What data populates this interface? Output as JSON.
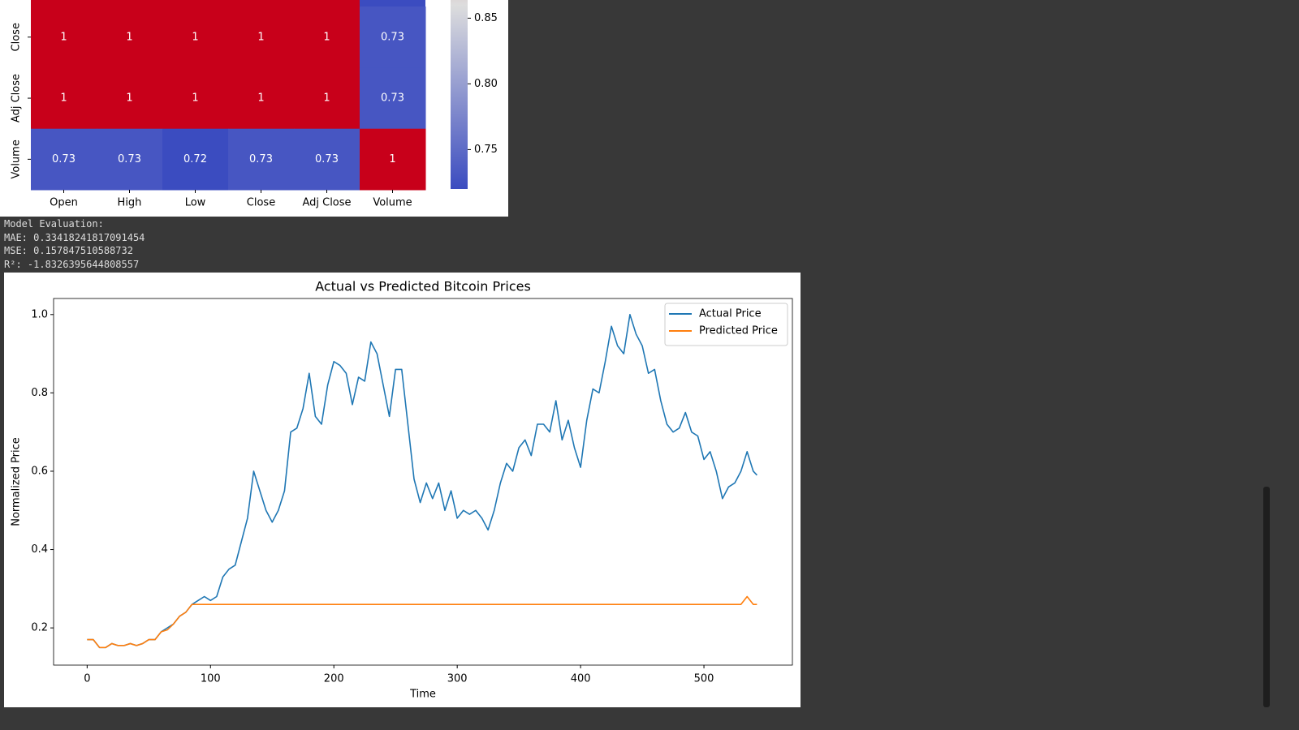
{
  "chart_data": [
    {
      "type": "heatmap",
      "rows": [
        "Close",
        "Adj Close",
        "Volume"
      ],
      "columns": [
        "Open",
        "High",
        "Low",
        "Close",
        "Adj Close",
        "Volume"
      ],
      "values": [
        [
          1,
          1,
          1,
          1,
          1,
          0.73
        ],
        [
          1,
          1,
          1,
          1,
          1,
          0.73
        ],
        [
          0.73,
          0.73,
          0.72,
          0.73,
          0.73,
          1
        ]
      ],
      "colors": [
        "#3b4cc0",
        "#dddddd",
        "#c8001a"
      ],
      "clim": [
        0.72,
        1
      ],
      "cticks": [
        0.75,
        {
          "value": 0.8,
          "label": "0.80"
        },
        0.85
      ]
    },
    {
      "type": "line",
      "title": "Actual vs Predicted Bitcoin Prices",
      "xlabel": "Time",
      "ylabel": "Normalized Price",
      "x": [
        0,
        5,
        10,
        15,
        20,
        25,
        30,
        35,
        40,
        45,
        50,
        55,
        60,
        65,
        70,
        75,
        80,
        85,
        90,
        95,
        100,
        105,
        110,
        115,
        120,
        125,
        130,
        135,
        140,
        145,
        150,
        155,
        160,
        165,
        170,
        175,
        180,
        185,
        190,
        195,
        200,
        205,
        210,
        215,
        220,
        225,
        230,
        235,
        240,
        245,
        250,
        255,
        260,
        265,
        270,
        275,
        280,
        285,
        290,
        295,
        300,
        305,
        310,
        315,
        320,
        325,
        330,
        335,
        340,
        345,
        350,
        355,
        360,
        365,
        370,
        375,
        380,
        385,
        390,
        395,
        400,
        405,
        410,
        415,
        420,
        425,
        430,
        435,
        440,
        445,
        450,
        455,
        460,
        465,
        470,
        475,
        480,
        485,
        490,
        495,
        500,
        505,
        510,
        515,
        520,
        525,
        530,
        535,
        540,
        543
      ],
      "series": [
        {
          "name": "Actual Price",
          "color": "#1f77b4",
          "values": [
            0.17,
            0.17,
            0.15,
            0.15,
            0.16,
            0.155,
            0.155,
            0.16,
            0.155,
            0.16,
            0.17,
            0.17,
            0.19,
            0.2,
            0.21,
            0.23,
            0.24,
            0.26,
            0.27,
            0.28,
            0.27,
            0.28,
            0.33,
            0.35,
            0.36,
            0.42,
            0.48,
            0.6,
            0.55,
            0.5,
            0.47,
            0.5,
            0.55,
            0.7,
            0.71,
            0.76,
            0.85,
            0.74,
            0.72,
            0.82,
            0.88,
            0.87,
            0.85,
            0.77,
            0.84,
            0.83,
            0.93,
            0.9,
            0.82,
            0.74,
            0.86,
            0.86,
            0.72,
            0.58,
            0.52,
            0.57,
            0.53,
            0.57,
            0.5,
            0.55,
            0.48,
            0.5,
            0.49,
            0.5,
            0.48,
            0.45,
            0.5,
            0.57,
            0.62,
            0.6,
            0.66,
            0.68,
            0.64,
            0.72,
            0.72,
            0.7,
            0.78,
            0.68,
            0.73,
            0.66,
            0.61,
            0.73,
            0.81,
            0.8,
            0.88,
            0.97,
            0.92,
            0.9,
            1.0,
            0.95,
            0.92,
            0.85,
            0.86,
            0.78,
            0.72,
            0.7,
            0.71,
            0.75,
            0.7,
            0.69,
            0.63,
            0.65,
            0.6,
            0.53,
            0.56,
            0.57,
            0.6,
            0.65,
            0.6,
            0.59
          ]
        },
        {
          "name": "Predicted Price",
          "color": "#ff7f0e",
          "values": [
            0.17,
            0.17,
            0.15,
            0.15,
            0.16,
            0.155,
            0.155,
            0.16,
            0.155,
            0.16,
            0.17,
            0.17,
            0.19,
            0.195,
            0.21,
            0.23,
            0.24,
            0.26,
            0.26,
            0.26,
            0.26,
            0.26,
            0.26,
            0.26,
            0.26,
            0.26,
            0.26,
            0.26,
            0.26,
            0.26,
            0.26,
            0.26,
            0.26,
            0.26,
            0.26,
            0.26,
            0.26,
            0.26,
            0.26,
            0.26,
            0.26,
            0.26,
            0.26,
            0.26,
            0.26,
            0.26,
            0.26,
            0.26,
            0.26,
            0.26,
            0.26,
            0.26,
            0.26,
            0.26,
            0.26,
            0.26,
            0.26,
            0.26,
            0.26,
            0.26,
            0.26,
            0.26,
            0.26,
            0.26,
            0.26,
            0.26,
            0.26,
            0.26,
            0.26,
            0.26,
            0.26,
            0.26,
            0.26,
            0.26,
            0.26,
            0.26,
            0.26,
            0.26,
            0.26,
            0.26,
            0.26,
            0.26,
            0.26,
            0.26,
            0.26,
            0.26,
            0.26,
            0.26,
            0.26,
            0.26,
            0.26,
            0.26,
            0.26,
            0.26,
            0.26,
            0.26,
            0.26,
            0.26,
            0.26,
            0.26,
            0.26,
            0.26,
            0.26,
            0.26,
            0.26,
            0.26,
            0.26,
            0.28,
            0.26,
            0.26
          ]
        }
      ],
      "xlim": [
        -27.2,
        571.7
      ],
      "ylim": [
        0.105,
        1.041
      ],
      "xticks": [
        0,
        100,
        200,
        300,
        400,
        500
      ],
      "yticks": [
        0.2,
        0.4,
        0.6,
        0.8,
        {
          "value": 1.0,
          "label": "1.0"
        }
      ],
      "legend": "upper right",
      "grid": false
    }
  ],
  "text_output": {
    "lines": [
      "Model Evaluation:",
      "MAE: 0.33418241817091454",
      "MSE: 0.157847510588732",
      "R²: -1.8326395644808557"
    ]
  }
}
